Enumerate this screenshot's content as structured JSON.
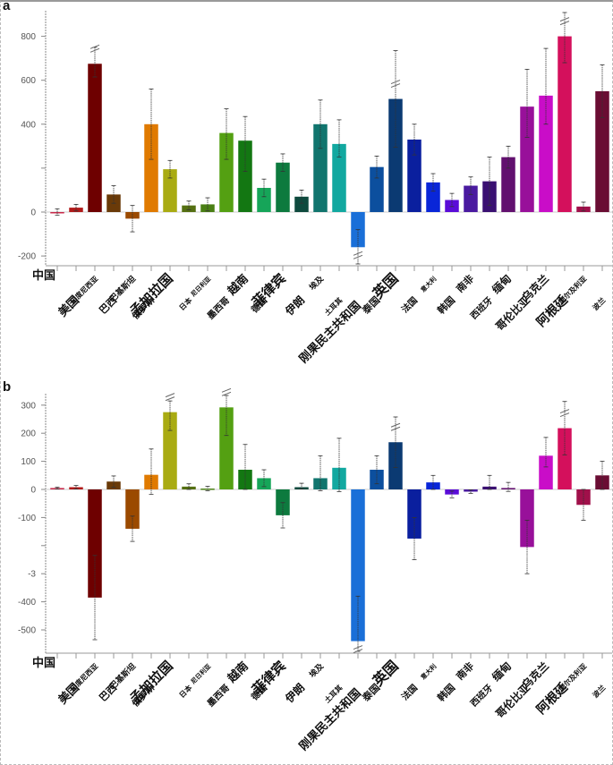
{
  "panels": [
    "a",
    "b"
  ],
  "chart_data": [
    {
      "panel": "a",
      "type": "bar",
      "title": "",
      "xlabel": "",
      "ylabel": "",
      "ylim": [
        -240,
        900
      ],
      "yticks": [
        {
          "value": 800,
          "label": "800"
        },
        {
          "value": 600,
          "label": "600"
        },
        {
          "value": 400,
          "label": "400"
        },
        {
          "value": 200,
          "label": ""
        },
        {
          "value": 0,
          "label": "0"
        },
        {
          "value": -200,
          "label": "-200"
        }
      ],
      "grid": false,
      "categories": [
        "中国",
        "美国",
        "印度尼西亚",
        "巴西",
        "巴基斯坦",
        "俄罗斯",
        "孟加拉国",
        "日本",
        "尼日利亚",
        "墨西哥",
        "越南",
        "德国",
        "菲律宾",
        "伊朗",
        "埃及",
        "土耳其",
        "刚果民主共和国",
        "泰国",
        "英国",
        "法国",
        "意大利",
        "韩国",
        "南非",
        "西班牙",
        "缅甸",
        "哥伦比亚",
        "乌克兰",
        "阿根廷",
        "阿尔及利亚",
        "波兰"
      ],
      "values": [
        0,
        20,
        675,
        80,
        -30,
        400,
        195,
        30,
        35,
        360,
        325,
        110,
        225,
        70,
        400,
        310,
        -160,
        205,
        515,
        330,
        135,
        55,
        120,
        140,
        250,
        480,
        530,
        800,
        25,
        550
      ],
      "err_low": [
        15,
        15,
        60,
        40,
        60,
        160,
        40,
        20,
        30,
        120,
        140,
        40,
        40,
        30,
        110,
        60,
        80,
        50,
        220,
        70,
        40,
        30,
        40,
        110,
        50,
        140,
        130,
        120,
        20,
        120
      ],
      "err_high": [
        15,
        15,
        75,
        40,
        60,
        160,
        40,
        20,
        30,
        110,
        110,
        40,
        40,
        30,
        110,
        110,
        80,
        50,
        220,
        70,
        40,
        30,
        40,
        110,
        50,
        170,
        215,
        120,
        20,
        120
      ],
      "broken": [
        false,
        false,
        true,
        false,
        false,
        false,
        false,
        false,
        false,
        false,
        false,
        false,
        false,
        false,
        false,
        false,
        true,
        false,
        true,
        false,
        false,
        false,
        false,
        false,
        false,
        false,
        false,
        true,
        false,
        false
      ],
      "colors": [
        "#c7294a",
        "#b11a1a",
        "#6e0000",
        "#6a3a08",
        "#9b4a00",
        "#e07a00",
        "#a9ab12",
        "#557012",
        "#4a7f14",
        "#54a012",
        "#137712",
        "#16a559",
        "#0d7a3e",
        "#0e4a3e",
        "#11756e",
        "#12a8a0",
        "#1a6fd8",
        "#0c4f9e",
        "#0b3a72",
        "#0a1f9e",
        "#0926d8",
        "#5a0cd8",
        "#4a1aa0",
        "#3a1072",
        "#62106f",
        "#98109a",
        "#c90dc8",
        "#d4105c",
        "#a0104a",
        "#6a0d33"
      ]
    },
    {
      "panel": "b",
      "type": "bar",
      "title": "",
      "xlabel": "",
      "ylabel": "",
      "ylim": [
        -580,
        340
      ],
      "yticks": [
        {
          "value": 300,
          "label": "300"
        },
        {
          "value": 200,
          "label": "200"
        },
        {
          "value": 100,
          "label": "100"
        },
        {
          "value": 0,
          "label": "0"
        },
        {
          "value": -100,
          "label": "-100"
        },
        {
          "value": -200,
          "label": ""
        },
        {
          "value": -300,
          "label": "-3"
        },
        {
          "value": -400,
          "label": "-400"
        },
        {
          "value": -500,
          "label": "-500"
        }
      ],
      "grid": false,
      "categories": [
        "中国",
        "美国",
        "印度尼西亚",
        "巴西",
        "巴基斯坦",
        "俄罗斯",
        "孟加拉国",
        "日本",
        "尼日利亚",
        "墨西哥",
        "越南",
        "德国",
        "菲律宾",
        "伊朗",
        "埃及",
        "土耳其",
        "刚果民主共和国",
        "泰国",
        "英国",
        "法国",
        "意大利",
        "韩国",
        "南非",
        "西班牙",
        "缅甸",
        "哥伦比亚",
        "乌克兰",
        "阿根廷",
        "阿尔及利亚",
        "波兰"
      ],
      "values": [
        5,
        8,
        -385,
        28,
        -140,
        52,
        275,
        10,
        3,
        292,
        70,
        40,
        -92,
        8,
        40,
        77,
        -540,
        70,
        168,
        -175,
        25,
        -18,
        -8,
        10,
        5,
        -205,
        120,
        218,
        -55,
        50
      ],
      "err_low": [
        3,
        6,
        150,
        20,
        45,
        70,
        65,
        10,
        8,
        100,
        70,
        30,
        45,
        6,
        45,
        85,
        160,
        50,
        90,
        75,
        25,
        12,
        6,
        10,
        12,
        95,
        40,
        95,
        55,
        50
      ],
      "err_high": [
        3,
        6,
        150,
        20,
        45,
        92,
        40,
        10,
        8,
        90,
        90,
        30,
        45,
        14,
        80,
        105,
        160,
        50,
        90,
        75,
        25,
        12,
        6,
        40,
        20,
        95,
        65,
        95,
        55,
        50
      ],
      "broken": [
        false,
        false,
        false,
        false,
        false,
        false,
        true,
        false,
        false,
        true,
        false,
        false,
        false,
        false,
        false,
        false,
        true,
        false,
        true,
        false,
        false,
        false,
        false,
        false,
        false,
        false,
        false,
        true,
        false,
        false
      ],
      "colors": [
        "#c7294a",
        "#b11a1a",
        "#6e0000",
        "#6a3a08",
        "#9b4a00",
        "#e07a00",
        "#a9ab12",
        "#557012",
        "#4a7f14",
        "#54a012",
        "#137712",
        "#16a559",
        "#0d7a3e",
        "#0e4a3e",
        "#11756e",
        "#12a8a0",
        "#1a6fd8",
        "#0c4f9e",
        "#0b3a72",
        "#0a1f9e",
        "#0926d8",
        "#5a0cd8",
        "#4a1aa0",
        "#3a1072",
        "#62106f",
        "#98109a",
        "#c90dc8",
        "#d4105c",
        "#a0104a",
        "#6a0d33"
      ]
    }
  ]
}
